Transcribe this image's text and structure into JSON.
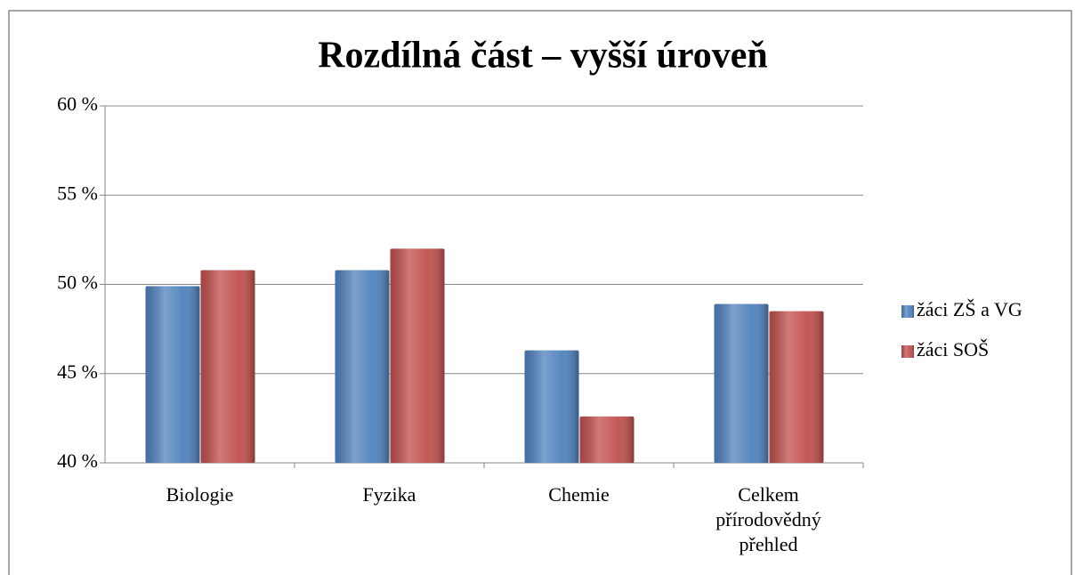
{
  "chart_data": {
    "type": "bar",
    "title": "Rozdílná část – vyšší úroveň",
    "categories": [
      "Biologie",
      "Fyzika",
      "Chemie",
      "Celkem přírodovědný přehled"
    ],
    "series": [
      {
        "name": "žáci ZŠ a VG",
        "color": "#4f81bd",
        "values": [
          49.9,
          50.8,
          46.3,
          48.9
        ]
      },
      {
        "name": "žáci SOŠ",
        "color": "#c0504d",
        "values": [
          50.8,
          52.0,
          42.6,
          48.5
        ]
      }
    ],
    "ylim": [
      40,
      60
    ],
    "yticks": [
      {
        "value": 40,
        "label": "40 %"
      },
      {
        "value": 45,
        "label": "45 %"
      },
      {
        "value": 50,
        "label": "50 %"
      },
      {
        "value": 55,
        "label": "55 %"
      },
      {
        "value": 60,
        "label": "60 %"
      }
    ],
    "grid": true,
    "legend": "right"
  }
}
